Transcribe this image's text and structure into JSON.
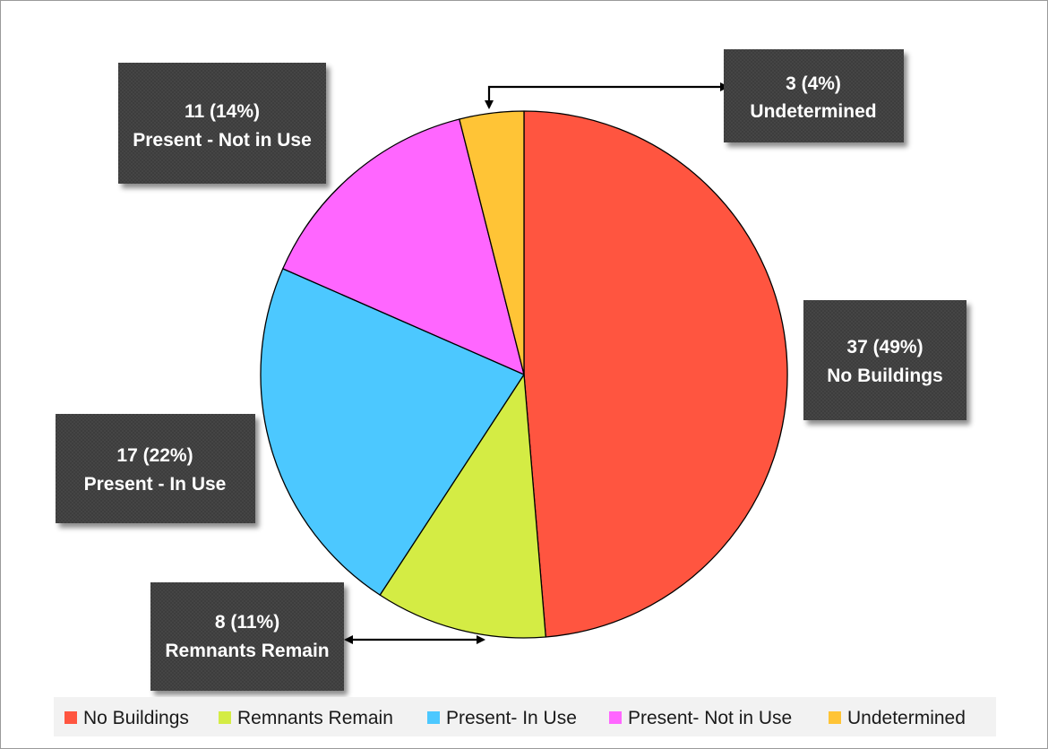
{
  "chart_data": {
    "type": "pie",
    "title": "",
    "start": "top",
    "direction": "clockwise",
    "legend_position": "bottom",
    "slices": [
      {
        "label": "No Buildings",
        "value": 37,
        "percent": "49%",
        "color": "#FF5540",
        "callout_value": "37 (49%)",
        "callout_label": "No Buildings"
      },
      {
        "label": "Remnants Remain",
        "value": 8,
        "percent": "11%",
        "color": "#D4EC44",
        "callout_value": "8 (11%)",
        "callout_label": "Remnants Remain"
      },
      {
        "label": "Present - In Use",
        "value": 17,
        "percent": "22%",
        "color": "#4CC8FF",
        "callout_value": "17 (22%)",
        "callout_label": "Present - In Use"
      },
      {
        "label": "Present - Not in Use",
        "value": 11,
        "percent": "14%",
        "color": "#FF66FF",
        "callout_value": "11 (14%)",
        "callout_label": "Present - Not in Use"
      },
      {
        "label": "Undetermined",
        "value": 3,
        "percent": "4%",
        "color": "#FFC436",
        "callout_value": "3 (4%)",
        "callout_label": "Undetermined"
      }
    ],
    "legend": [
      {
        "label": "No Buildings",
        "color": "#FF5540"
      },
      {
        "label": "Remnants Remain",
        "color": "#D4EC44"
      },
      {
        "label": "Present- In Use",
        "color": "#4CC8FF"
      },
      {
        "label": "Present- Not in Use",
        "color": "#FF66FF"
      },
      {
        "label": "Undetermined",
        "color": "#FFC436"
      }
    ]
  }
}
